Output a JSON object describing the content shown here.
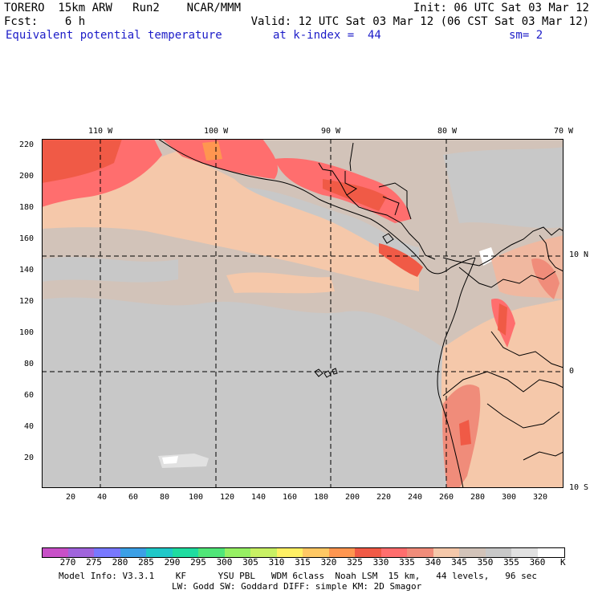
{
  "header": {
    "line1_left": "TORERO  15km ARW   Run2    NCAR/MMM",
    "line1_right": "Init: 06 UTC Sat 03 Mar 12",
    "line2_left": "Fcst:    6 h",
    "line2_right": "Valid: 12 UTC Sat 03 Mar 12 (06 CST Sat 03 Mar 12)",
    "field_name": "Equivalent potential temperature",
    "level": "at k-index =  44",
    "smoothing": "sm= 2"
  },
  "map": {
    "lon_labels": [
      "110 W",
      "100 W",
      "90 W",
      "80 W",
      "70 W"
    ],
    "lat_labels": [
      "10 N",
      "0",
      "10 S"
    ],
    "y_ticks": [
      "220",
      "200",
      "180",
      "160",
      "140",
      "120",
      "100",
      "80",
      "60",
      "40",
      "20"
    ],
    "x_ticks": [
      "20",
      "40",
      "60",
      "80",
      "100",
      "120",
      "140",
      "160",
      "180",
      "200",
      "220",
      "240",
      "260",
      "280",
      "300",
      "320"
    ]
  },
  "colorbar": {
    "levels": [
      "270",
      "275",
      "280",
      "285",
      "290",
      "295",
      "300",
      "305",
      "310",
      "315",
      "320",
      "325",
      "330",
      "335",
      "340",
      "345",
      "350",
      "355",
      "360"
    ],
    "unit": "K",
    "colors": [
      "#c850c8",
      "#a064dc",
      "#7878ff",
      "#3ca0e6",
      "#20c8c8",
      "#20dca0",
      "#50e678",
      "#96f064",
      "#c8f064",
      "#fff064",
      "#ffc864",
      "#ff9650",
      "#f05a46",
      "#ff6e6e",
      "#f08c7a",
      "#f5c8aa",
      "#d2c3b9",
      "#c8c8c8",
      "#e1e1e1",
      "#ffffff"
    ]
  },
  "footer": {
    "line1": "Model Info: V3.3.1    KF      YSU PBL   WDM 6class  Noah LSM  15 km,   44 levels,   96 sec",
    "line2": "LW: Godd SW: Goddard DIFF: simple KM: 2D Smagor"
  }
}
